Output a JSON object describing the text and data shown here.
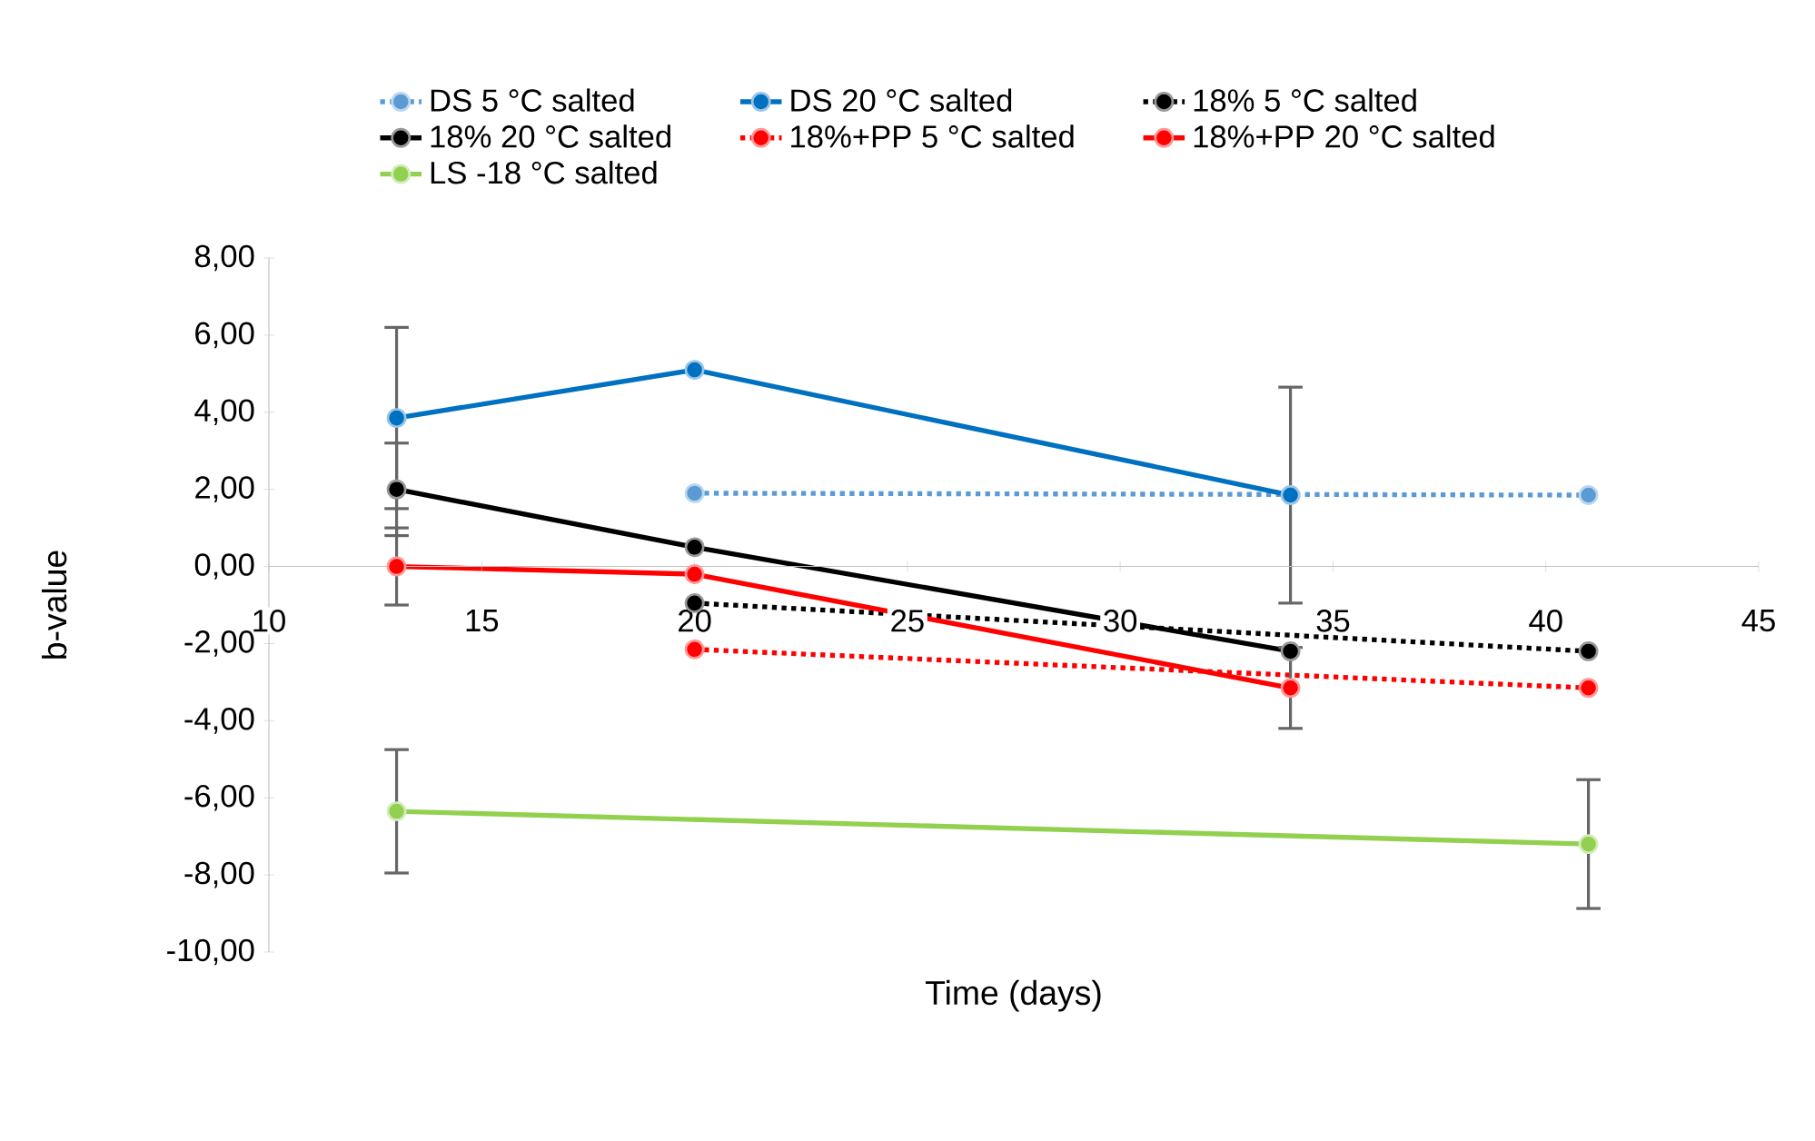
{
  "chart_data": {
    "type": "line",
    "xlabel": "Time (days)",
    "ylabel": "b-value",
    "xlim": [
      10,
      45
    ],
    "xticks": [
      10,
      15,
      20,
      25,
      30,
      35,
      40,
      45
    ],
    "ylim": [
      -10,
      8
    ],
    "yticks": [
      {
        "value": -10,
        "label": "-10,00"
      },
      {
        "value": -8,
        "label": "-8,00"
      },
      {
        "value": -6,
        "label": "-6,00"
      },
      {
        "value": -4,
        "label": "-4,00"
      },
      {
        "value": -2,
        "label": "-2,00"
      },
      {
        "value": 0,
        "label": "0,00"
      },
      {
        "value": 2,
        "label": "2,00"
      },
      {
        "value": 4,
        "label": "4,00"
      },
      {
        "value": 6,
        "label": "6,00"
      },
      {
        "value": 8,
        "label": "8,00"
      }
    ],
    "grid": false,
    "legend": "top",
    "marker": "circle",
    "series": [
      {
        "name": "DS 5 °C salted",
        "color": "#5b9bd5",
        "line_style": "dotted",
        "x": [
          20,
          41
        ],
        "values": [
          1.9,
          1.85
        ]
      },
      {
        "name": "DS 20 °C salted",
        "color": "#0070c0",
        "line_style": "solid",
        "x": [
          13,
          20,
          34
        ],
        "values": [
          3.85,
          5.1,
          1.85
        ],
        "errors": [
          2.35,
          null,
          2.8
        ]
      },
      {
        "name": "18% 5 °C salted",
        "color": "#000000",
        "line_style": "dotted",
        "x": [
          20,
          41
        ],
        "values": [
          -0.95,
          -2.2
        ]
      },
      {
        "name": "18% 20 °C salted",
        "color": "#000000",
        "line_style": "solid",
        "x": [
          13,
          20,
          34
        ],
        "values": [
          2.0,
          0.5,
          -2.2
        ],
        "errors": [
          1.2,
          null,
          null
        ]
      },
      {
        "name": "18%+PP 5 °C salted",
        "color": "#ff0000",
        "line_style": "dotted",
        "x": [
          20,
          41
        ],
        "values": [
          -2.15,
          -3.15
        ]
      },
      {
        "name": "18%+PP 20 °C salted",
        "color": "#ff0000",
        "line_style": "solid",
        "x": [
          13,
          20,
          34
        ],
        "values": [
          0.0,
          -0.2,
          -3.15
        ],
        "errors": [
          1.0,
          null,
          1.05
        ]
      },
      {
        "name": "LS -18 °C salted",
        "color": "#92d050",
        "line_style": "solid",
        "x": [
          13,
          41
        ],
        "values": [
          -6.35,
          -7.2
        ],
        "errors": [
          1.6,
          1.67
        ]
      }
    ]
  }
}
